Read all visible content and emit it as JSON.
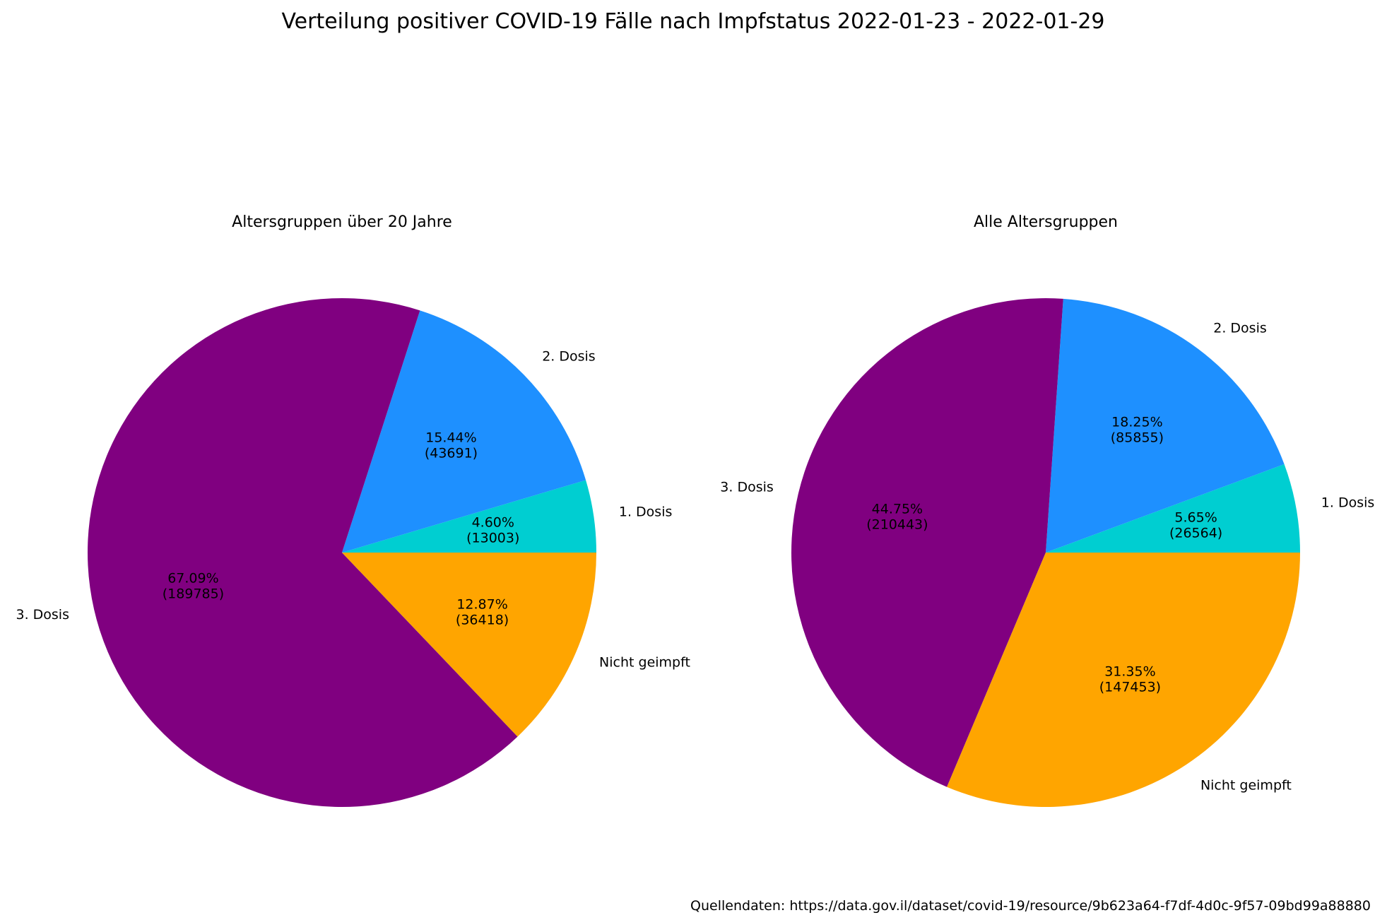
{
  "figure": {
    "suptitle": "Verteilung positiver COVID-19 Fälle nach Impfstatus 2022-01-23 - 2022-01-29",
    "source": "Quellendaten: https://data.gov.il/dataset/covid-19/resource/9b623a64-f7df-4d0c-9f57-09bd99a88880"
  },
  "chart_data": [
    {
      "type": "pie",
      "title": "Altersgruppen über 20 Jahre",
      "slices": [
        {
          "label": "1. Dosis",
          "value": 13003,
          "percent": "4.60%",
          "color": "#00CED1"
        },
        {
          "label": "2. Dosis",
          "value": 43691,
          "percent": "15.44%",
          "color": "#1E90FF"
        },
        {
          "label": "3. Dosis",
          "value": 189785,
          "percent": "67.09%",
          "color": "#800080"
        },
        {
          "label": "Nicht geimpft",
          "value": 36418,
          "percent": "12.87%",
          "color": "#FFA500"
        }
      ]
    },
    {
      "type": "pie",
      "title": "Alle Altersgruppen",
      "slices": [
        {
          "label": "1. Dosis",
          "value": 26564,
          "percent": "5.65%",
          "color": "#00CED1"
        },
        {
          "label": "2. Dosis",
          "value": 85855,
          "percent": "18.25%",
          "color": "#1E90FF"
        },
        {
          "label": "3. Dosis",
          "value": 210443,
          "percent": "44.75%",
          "color": "#800080"
        },
        {
          "label": "Nicht geimpft",
          "value": 147453,
          "percent": "31.35%",
          "color": "#FFA500"
        }
      ]
    }
  ]
}
